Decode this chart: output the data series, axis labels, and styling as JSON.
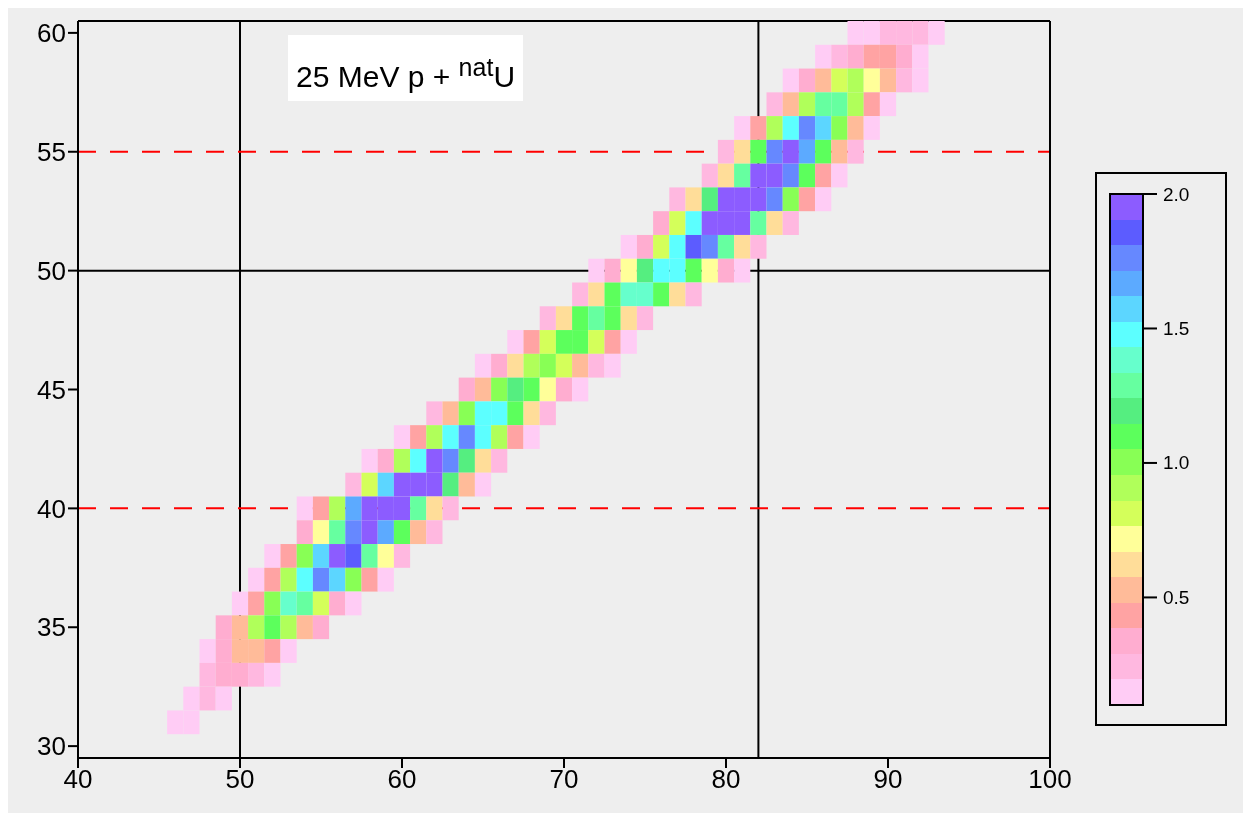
{
  "chart_data": {
    "type": "heatmap",
    "title": "25 MeV p + $^{nat}$U",
    "x": [
      46,
      47,
      48,
      49,
      50,
      51,
      52,
      53,
      54,
      55,
      56,
      57,
      58,
      59,
      60,
      61,
      62,
      63,
      64,
      65,
      66,
      67,
      68,
      69,
      70,
      71,
      72,
      73,
      74,
      75,
      76,
      77,
      78,
      79,
      80,
      81,
      82,
      83,
      84,
      85,
      86,
      87,
      88,
      89,
      90,
      91,
      92,
      93
    ],
    "xlim": [
      40,
      100
    ],
    "xticks": [
      40,
      50,
      60,
      70,
      80,
      90,
      100
    ],
    "y_categories": [
      "60",
      null,
      null,
      null,
      null,
      "55",
      null,
      null,
      null,
      null,
      "50",
      null,
      null,
      null,
      null,
      "45",
      null,
      null,
      null,
      null,
      "40",
      null,
      null,
      null,
      null,
      "35",
      null,
      null,
      null,
      null,
      "30"
    ],
    "cells": [
      [
        null,
        null,
        null,
        null,
        null,
        null,
        null,
        null,
        null,
        null,
        null,
        null,
        null,
        null,
        null,
        null,
        null,
        null,
        null,
        null,
        null,
        null,
        null,
        null,
        null,
        null,
        null,
        null,
        null,
        null,
        null,
        null,
        null,
        null,
        null,
        null,
        null,
        null,
        null,
        null,
        null,
        null,
        0.15,
        0.15,
        0.24,
        0.24,
        0.24,
        0.15
      ],
      [
        null,
        null,
        null,
        null,
        null,
        null,
        null,
        null,
        null,
        null,
        null,
        null,
        null,
        null,
        null,
        null,
        null,
        null,
        null,
        null,
        null,
        null,
        null,
        null,
        null,
        null,
        null,
        null,
        null,
        null,
        null,
        null,
        null,
        null,
        null,
        null,
        null,
        null,
        null,
        null,
        0.15,
        0.24,
        0.34,
        0.43,
        0.43,
        0.34,
        0.15,
        null
      ],
      [
        null,
        null,
        null,
        null,
        null,
        null,
        null,
        null,
        null,
        null,
        null,
        null,
        null,
        null,
        null,
        null,
        null,
        null,
        null,
        null,
        null,
        null,
        null,
        null,
        null,
        null,
        null,
        null,
        null,
        null,
        null,
        null,
        null,
        null,
        null,
        null,
        null,
        null,
        0.15,
        0.34,
        0.53,
        0.81,
        0.91,
        0.72,
        0.53,
        0.24,
        0.15,
        null
      ],
      [
        null,
        null,
        null,
        null,
        null,
        null,
        null,
        null,
        null,
        null,
        null,
        null,
        null,
        null,
        null,
        null,
        null,
        null,
        null,
        null,
        null,
        null,
        null,
        null,
        null,
        null,
        null,
        null,
        null,
        null,
        null,
        null,
        null,
        null,
        null,
        null,
        null,
        0.24,
        0.53,
        0.91,
        1.29,
        1.29,
        0.91,
        0.43,
        0.15,
        null,
        null,
        null
      ],
      [
        null,
        null,
        null,
        null,
        null,
        null,
        null,
        null,
        null,
        null,
        null,
        null,
        null,
        null,
        null,
        null,
        null,
        null,
        null,
        null,
        null,
        null,
        null,
        null,
        null,
        null,
        null,
        null,
        null,
        null,
        null,
        null,
        null,
        null,
        null,
        0.15,
        0.43,
        0.91,
        1.48,
        1.76,
        1.57,
        1.0,
        0.53,
        0.15,
        null,
        null,
        null,
        null
      ],
      [
        null,
        null,
        null,
        null,
        null,
        null,
        null,
        null,
        null,
        null,
        null,
        null,
        null,
        null,
        null,
        null,
        null,
        null,
        null,
        null,
        null,
        null,
        null,
        null,
        null,
        null,
        null,
        null,
        null,
        null,
        null,
        null,
        null,
        null,
        0.24,
        0.62,
        1.1,
        1.76,
        1.95,
        1.67,
        1.1,
        0.53,
        0.24,
        null,
        null,
        null,
        null,
        null
      ],
      [
        null,
        null,
        null,
        null,
        null,
        null,
        null,
        null,
        null,
        null,
        null,
        null,
        null,
        null,
        null,
        null,
        null,
        null,
        null,
        null,
        null,
        null,
        null,
        null,
        null,
        null,
        null,
        null,
        null,
        null,
        null,
        null,
        null,
        0.24,
        0.62,
        1.29,
        1.95,
        1.95,
        1.76,
        1.1,
        0.43,
        0.15,
        null,
        null,
        null,
        null,
        null,
        null
      ],
      [
        null,
        null,
        null,
        null,
        null,
        null,
        null,
        null,
        null,
        null,
        null,
        null,
        null,
        null,
        null,
        null,
        null,
        null,
        null,
        null,
        null,
        null,
        null,
        null,
        null,
        null,
        null,
        null,
        null,
        null,
        null,
        0.24,
        0.62,
        1.19,
        1.95,
        1.95,
        1.95,
        1.76,
        1.0,
        0.43,
        0.15,
        null,
        null,
        null,
        null,
        null,
        null,
        null
      ],
      [
        null,
        null,
        null,
        null,
        null,
        null,
        null,
        null,
        null,
        null,
        null,
        null,
        null,
        null,
        null,
        null,
        null,
        null,
        null,
        null,
        null,
        null,
        null,
        null,
        null,
        null,
        null,
        null,
        null,
        null,
        0.34,
        0.81,
        1.48,
        1.95,
        1.95,
        1.95,
        1.29,
        0.62,
        0.24,
        null,
        null,
        null,
        null,
        null,
        null,
        null,
        null,
        null
      ],
      [
        null,
        null,
        null,
        null,
        null,
        null,
        null,
        null,
        null,
        null,
        null,
        null,
        null,
        null,
        null,
        null,
        null,
        null,
        null,
        null,
        null,
        null,
        null,
        null,
        null,
        null,
        null,
        null,
        0.15,
        0.34,
        0.81,
        1.48,
        1.86,
        1.76,
        1.29,
        0.62,
        0.24,
        null,
        null,
        null,
        null,
        null,
        null,
        null,
        null,
        null,
        null,
        null
      ],
      [
        null,
        null,
        null,
        null,
        null,
        null,
        null,
        null,
        null,
        null,
        null,
        null,
        null,
        null,
        null,
        null,
        null,
        null,
        null,
        null,
        null,
        null,
        null,
        null,
        null,
        null,
        0.15,
        0.34,
        0.72,
        1.19,
        1.48,
        1.48,
        1.1,
        0.72,
        0.34,
        0.15,
        null,
        null,
        null,
        null,
        null,
        null,
        null,
        null,
        null,
        null,
        null,
        null
      ],
      [
        null,
        null,
        null,
        null,
        null,
        null,
        null,
        null,
        null,
        null,
        null,
        null,
        null,
        null,
        null,
        null,
        null,
        null,
        null,
        null,
        null,
        null,
        null,
        null,
        null,
        0.24,
        0.62,
        1.1,
        1.38,
        1.38,
        1.1,
        0.62,
        0.24,
        null,
        null,
        null,
        null,
        null,
        null,
        null,
        null,
        null,
        null,
        null,
        null,
        null,
        null,
        null
      ],
      [
        null,
        null,
        null,
        null,
        null,
        null,
        null,
        null,
        null,
        null,
        null,
        null,
        null,
        null,
        null,
        null,
        null,
        null,
        null,
        null,
        null,
        null,
        null,
        0.24,
        0.62,
        1.1,
        1.29,
        1.1,
        0.62,
        0.24,
        null,
        null,
        null,
        null,
        null,
        null,
        null,
        null,
        null,
        null,
        null,
        null,
        null,
        null,
        null,
        null,
        null,
        null
      ],
      [
        null,
        null,
        null,
        null,
        null,
        null,
        null,
        null,
        null,
        null,
        null,
        null,
        null,
        null,
        null,
        null,
        null,
        null,
        null,
        null,
        null,
        0.15,
        0.43,
        0.81,
        1.1,
        1.1,
        0.81,
        0.43,
        0.15,
        null,
        null,
        null,
        null,
        null,
        null,
        null,
        null,
        null,
        null,
        null,
        null,
        null,
        null,
        null,
        null,
        null,
        null,
        null
      ],
      [
        null,
        null,
        null,
        null,
        null,
        null,
        null,
        null,
        null,
        null,
        null,
        null,
        null,
        null,
        null,
        null,
        null,
        null,
        null,
        0.15,
        0.34,
        0.62,
        0.91,
        1.0,
        0.81,
        0.53,
        0.24,
        0.15,
        null,
        null,
        null,
        null,
        null,
        null,
        null,
        null,
        null,
        null,
        null,
        null,
        null,
        null,
        null,
        null,
        null,
        null,
        null,
        null
      ],
      [
        null,
        null,
        null,
        null,
        null,
        null,
        null,
        null,
        null,
        null,
        null,
        null,
        null,
        null,
        null,
        null,
        null,
        null,
        0.34,
        0.53,
        1.0,
        1.19,
        1.1,
        0.72,
        0.34,
        0.15,
        null,
        null,
        null,
        null,
        null,
        null,
        null,
        null,
        null,
        null,
        null,
        null,
        null,
        null,
        null,
        null,
        null,
        null,
        null,
        null,
        null,
        null
      ],
      [
        null,
        null,
        null,
        null,
        null,
        null,
        null,
        null,
        null,
        null,
        null,
        null,
        null,
        null,
        null,
        null,
        0.24,
        0.53,
        1.0,
        1.48,
        1.48,
        1.1,
        0.62,
        0.24,
        null,
        null,
        null,
        null,
        null,
        null,
        null,
        null,
        null,
        null,
        null,
        null,
        null,
        null,
        null,
        null,
        null,
        null,
        null,
        null,
        null,
        null,
        null,
        null
      ],
      [
        null,
        null,
        null,
        null,
        null,
        null,
        null,
        null,
        null,
        null,
        null,
        null,
        null,
        null,
        0.15,
        0.43,
        0.91,
        1.48,
        1.76,
        1.48,
        0.91,
        0.43,
        0.15,
        null,
        null,
        null,
        null,
        null,
        null,
        null,
        null,
        null,
        null,
        null,
        null,
        null,
        null,
        null,
        null,
        null,
        null,
        null,
        null,
        null,
        null,
        null,
        null,
        null
      ],
      [
        null,
        null,
        null,
        null,
        null,
        null,
        null,
        null,
        null,
        null,
        null,
        null,
        0.15,
        0.34,
        0.91,
        1.48,
        1.95,
        1.76,
        1.19,
        0.62,
        0.24,
        null,
        null,
        null,
        null,
        null,
        null,
        null,
        null,
        null,
        null,
        null,
        null,
        null,
        null,
        null,
        null,
        null,
        null,
        null,
        null,
        null,
        null,
        null,
        null,
        null,
        null,
        null
      ],
      [
        null,
        null,
        null,
        null,
        null,
        null,
        null,
        null,
        null,
        null,
        null,
        0.24,
        0.81,
        1.57,
        1.95,
        1.95,
        1.95,
        1.19,
        0.53,
        0.15,
        null,
        null,
        null,
        null,
        null,
        null,
        null,
        null,
        null,
        null,
        null,
        null,
        null,
        null,
        null,
        null,
        null,
        null,
        null,
        null,
        null,
        null,
        null,
        null,
        null,
        null,
        null,
        null
      ],
      [
        null,
        null,
        null,
        null,
        null,
        null,
        null,
        null,
        0.15,
        0.43,
        0.91,
        1.67,
        1.95,
        1.95,
        1.95,
        1.29,
        0.62,
        0.24,
        null,
        null,
        null,
        null,
        null,
        null,
        null,
        null,
        null,
        null,
        null,
        null,
        null,
        null,
        null,
        null,
        null,
        null,
        null,
        null,
        null,
        null,
        null,
        null,
        null,
        null,
        null,
        null,
        null,
        null
      ],
      [
        null,
        null,
        null,
        null,
        null,
        null,
        null,
        null,
        0.34,
        0.72,
        1.29,
        1.76,
        1.95,
        1.67,
        1.1,
        0.53,
        0.24,
        null,
        null,
        null,
        null,
        null,
        null,
        null,
        null,
        null,
        null,
        null,
        null,
        null,
        null,
        null,
        null,
        null,
        null,
        null,
        null,
        null,
        null,
        null,
        null,
        null,
        null,
        null,
        null,
        null,
        null,
        null
      ],
      [
        null,
        null,
        null,
        null,
        null,
        null,
        0.15,
        0.43,
        1.0,
        1.57,
        1.95,
        1.86,
        1.29,
        0.72,
        0.24,
        null,
        null,
        null,
        null,
        null,
        null,
        null,
        null,
        null,
        null,
        null,
        null,
        null,
        null,
        null,
        null,
        null,
        null,
        null,
        null,
        null,
        null,
        null,
        null,
        null,
        null,
        null,
        null,
        null,
        null,
        null,
        null,
        null
      ],
      [
        null,
        null,
        null,
        null,
        null,
        0.15,
        0.43,
        0.91,
        1.48,
        1.76,
        1.57,
        1.0,
        0.43,
        0.15,
        null,
        null,
        null,
        null,
        null,
        null,
        null,
        null,
        null,
        null,
        null,
        null,
        null,
        null,
        null,
        null,
        null,
        null,
        null,
        null,
        null,
        null,
        null,
        null,
        null,
        null,
        null,
        null,
        null,
        null,
        null,
        null,
        null,
        null
      ],
      [
        null,
        null,
        null,
        null,
        0.15,
        0.43,
        1.0,
        1.38,
        1.29,
        0.81,
        0.34,
        0.15,
        null,
        null,
        null,
        null,
        null,
        null,
        null,
        null,
        null,
        null,
        null,
        null,
        null,
        null,
        null,
        null,
        null,
        null,
        null,
        null,
        null,
        null,
        null,
        null,
        null,
        null,
        null,
        null,
        null,
        null,
        null,
        null,
        null,
        null,
        null,
        null
      ],
      [
        null,
        null,
        null,
        0.34,
        0.53,
        0.91,
        1.1,
        0.91,
        0.53,
        0.34,
        null,
        null,
        null,
        null,
        null,
        null,
        null,
        null,
        null,
        null,
        null,
        null,
        null,
        null,
        null,
        null,
        null,
        null,
        null,
        null,
        null,
        null,
        null,
        null,
        null,
        null,
        null,
        null,
        null,
        null,
        null,
        null,
        null,
        null,
        null,
        null,
        null,
        null
      ],
      [
        null,
        null,
        0.15,
        0.34,
        0.53,
        0.53,
        0.43,
        0.15,
        null,
        null,
        null,
        null,
        null,
        null,
        null,
        null,
        null,
        null,
        null,
        null,
        null,
        null,
        null,
        null,
        null,
        null,
        null,
        null,
        null,
        null,
        null,
        null,
        null,
        null,
        null,
        null,
        null,
        null,
        null,
        null,
        null,
        null,
        null,
        null,
        null,
        null,
        null,
        null
      ],
      [
        null,
        null,
        0.24,
        0.34,
        0.34,
        0.24,
        0.15,
        null,
        null,
        null,
        null,
        null,
        null,
        null,
        null,
        null,
        null,
        null,
        null,
        null,
        null,
        null,
        null,
        null,
        null,
        null,
        null,
        null,
        null,
        null,
        null,
        null,
        null,
        null,
        null,
        null,
        null,
        null,
        null,
        null,
        null,
        null,
        null,
        null,
        null,
        null,
        null,
        null
      ],
      [
        null,
        0.15,
        0.24,
        0.15,
        null,
        null,
        null,
        null,
        null,
        null,
        null,
        null,
        null,
        null,
        null,
        null,
        null,
        null,
        null,
        null,
        null,
        null,
        null,
        null,
        null,
        null,
        null,
        null,
        null,
        null,
        null,
        null,
        null,
        null,
        null,
        null,
        null,
        null,
        null,
        null,
        null,
        null,
        null,
        null,
        null,
        null,
        null,
        null
      ],
      [
        0.15,
        0.15,
        null,
        null,
        null,
        null,
        null,
        null,
        null,
        null,
        null,
        null,
        null,
        null,
        null,
        null,
        null,
        null,
        null,
        null,
        null,
        null,
        null,
        null,
        null,
        null,
        null,
        null,
        null,
        null,
        null,
        null,
        null,
        null,
        null,
        null,
        null,
        null,
        null,
        null,
        null,
        null,
        null,
        null,
        null,
        null,
        null,
        null
      ],
      [
        null,
        null,
        null,
        null,
        null,
        null,
        null,
        null,
        null,
        null,
        null,
        null,
        null,
        null,
        null,
        null,
        null,
        null,
        null,
        null,
        null,
        null,
        null,
        null,
        null,
        null,
        null,
        null,
        null,
        null,
        null,
        null,
        null,
        null,
        null,
        null,
        null,
        null,
        null,
        null,
        null,
        null,
        null,
        null,
        null,
        null,
        null,
        null
      ]
    ],
    "clim": [
      0.1,
      2.0
    ],
    "cticks": [
      {
        "value": 0.5,
        "label": "0.5"
      },
      {
        "value": 1,
        "label": "1.0"
      },
      {
        "value": 1.5,
        "label": "1.5"
      },
      {
        "value": 2,
        "label": "2.0"
      }
    ],
    "colors": [
      "#ffccf5",
      "#ffb8e0",
      "#ffadd0",
      "#ffa3a3",
      "#ffbb99",
      "#ffdd99",
      "#ffff99",
      "#d4ff5a",
      "#b0ff5a",
      "#88ff55",
      "#5cff5c",
      "#55ee80",
      "#66ffa0",
      "#66ffcc",
      "#5cffff",
      "#5cd6ff",
      "#5caaff",
      "#6688ff",
      "#5c5cff",
      "#8c5cff"
    ],
    "ref_lines": [
      {
        "axis": "x",
        "value": 50,
        "color": "#000000",
        "line_style": "solid"
      },
      {
        "axis": "x",
        "value": 82,
        "color": "#000000",
        "line_style": "solid"
      },
      {
        "axis": "y",
        "value": "50",
        "color": "#000000",
        "line_style": "solid"
      },
      {
        "axis": "y",
        "value": "55",
        "color": "#ff0000",
        "line_style": "dashed"
      },
      {
        "axis": "y",
        "value": "40",
        "color": "#ff0000",
        "line_style": "dashed"
      }
    ]
  }
}
